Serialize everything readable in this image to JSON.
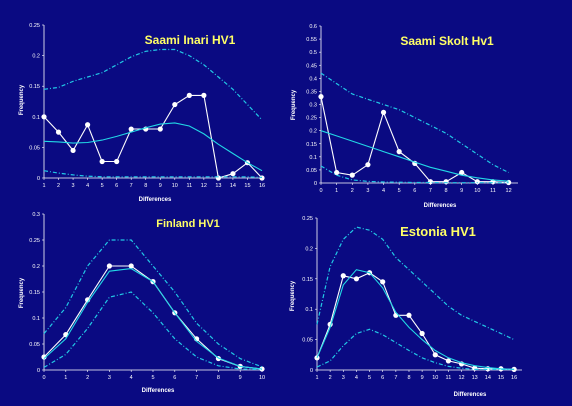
{
  "colors": {
    "background": "#0a0a82",
    "axis": "#ffffff",
    "observed": "#ffffff",
    "expected": "#22d8e6",
    "bounds": "#22c8e6",
    "title": "#ffff66"
  },
  "chart_data": [
    {
      "type": "line",
      "title": "Saami Inari HV1",
      "xlabel": "Differences",
      "ylabel": "Frequency",
      "x": [
        1,
        2,
        3,
        4,
        5,
        6,
        7,
        8,
        9,
        10,
        11,
        12,
        13,
        14,
        15,
        16
      ],
      "xlim": [
        1,
        16
      ],
      "ylim": [
        0,
        0.25
      ],
      "yticks": [
        "0",
        "0.05",
        "0.1",
        "0.15",
        "0.2",
        "0.25"
      ],
      "xticks": [
        "1",
        "2",
        "3",
        "4",
        "5",
        "6",
        "7",
        "8",
        "9",
        "10",
        "11",
        "12",
        "13",
        "14",
        "15",
        "16"
      ],
      "series": [
        {
          "role": "observed",
          "style": "solid-markers",
          "values": [
            0.1,
            0.075,
            0.045,
            0.087,
            0.027,
            0.027,
            0.08,
            0.08,
            0.08,
            0.12,
            0.135,
            0.135,
            0.0,
            0.007,
            0.025,
            0.0
          ]
        },
        {
          "role": "expected",
          "style": "solid",
          "values": [
            0.06,
            0.059,
            0.057,
            0.058,
            0.062,
            0.068,
            0.075,
            0.082,
            0.088,
            0.09,
            0.085,
            0.072,
            0.055,
            0.04,
            0.025,
            0.012
          ]
        },
        {
          "role": "upper",
          "style": "dash-dot",
          "values": [
            0.145,
            0.148,
            0.158,
            0.165,
            0.172,
            0.185,
            0.198,
            0.207,
            0.21,
            0.21,
            0.2,
            0.185,
            0.165,
            0.145,
            0.12,
            0.095
          ]
        },
        {
          "role": "lower",
          "style": "dash-dot",
          "values": [
            0.012,
            0.008,
            0.005,
            0.003,
            0.002,
            0.002,
            0.002,
            0.002,
            0.002,
            0.002,
            0.002,
            0.002,
            0.002,
            0.002,
            0.002,
            0.001
          ]
        }
      ]
    },
    {
      "type": "line",
      "title": "Saami Skolt Hv1",
      "xlabel": "Differences",
      "ylabel": "Frequency",
      "x": [
        0,
        1,
        2,
        3,
        4,
        5,
        6,
        7,
        8,
        9,
        10,
        11,
        12
      ],
      "xlim": [
        0,
        12.6
      ],
      "ylim": [
        0,
        0.6
      ],
      "yticks": [
        "0",
        "0.05",
        "0.1",
        "0.15",
        "0.2",
        "0.25",
        "0.3",
        "0.35",
        "0.4",
        "0.45",
        "0.5",
        "0.55",
        "0.6"
      ],
      "xticks": [
        "0",
        "1",
        "2",
        "3",
        "4",
        "5",
        "6",
        "7",
        "8",
        "9",
        "10",
        "11",
        "12"
      ],
      "series": [
        {
          "role": "observed",
          "style": "solid-markers",
          "values": [
            0.33,
            0.04,
            0.03,
            0.07,
            0.27,
            0.12,
            0.075,
            0.005,
            0.005,
            0.04,
            0.005,
            0.005,
            0.002
          ]
        },
        {
          "role": "expected",
          "style": "solid",
          "values": [
            0.2,
            0.18,
            0.16,
            0.14,
            0.12,
            0.1,
            0.08,
            0.06,
            0.045,
            0.03,
            0.02,
            0.012,
            0.007
          ]
        },
        {
          "role": "upper",
          "style": "dash-dot",
          "values": [
            0.42,
            0.38,
            0.34,
            0.32,
            0.3,
            0.28,
            0.25,
            0.22,
            0.19,
            0.15,
            0.11,
            0.07,
            0.04
          ]
        },
        {
          "role": "lower",
          "style": "dash-dot",
          "values": [
            0.065,
            0.03,
            0.012,
            0.006,
            0.004,
            0.003,
            0.002,
            0.002,
            0.001,
            0.001,
            0.001,
            0.001,
            0.001
          ]
        }
      ]
    },
    {
      "type": "line",
      "title": "Finland HV1",
      "xlabel": "Differences",
      "ylabel": "Frequency",
      "x": [
        0,
        1,
        2,
        3,
        4,
        5,
        6,
        7,
        8,
        9,
        10
      ],
      "xlim": [
        0,
        10
      ],
      "ylim": [
        0,
        0.3
      ],
      "yticks": [
        "0",
        "0.05",
        "0.1",
        "0.15",
        "0.2",
        "0.25",
        "0.3"
      ],
      "xticks": [
        "0",
        "1",
        "2",
        "3",
        "4",
        "5",
        "6",
        "7",
        "8",
        "9",
        "10"
      ],
      "series": [
        {
          "role": "observed",
          "style": "solid-markers",
          "values": [
            0.025,
            0.068,
            0.135,
            0.2,
            0.2,
            0.17,
            0.11,
            0.06,
            0.022,
            0.007,
            0.002
          ]
        },
        {
          "role": "expected",
          "style": "solid",
          "values": [
            0.022,
            0.06,
            0.13,
            0.19,
            0.195,
            0.17,
            0.11,
            0.055,
            0.023,
            0.007,
            0.002
          ]
        },
        {
          "role": "upper",
          "style": "dash-dot",
          "values": [
            0.07,
            0.12,
            0.2,
            0.25,
            0.25,
            0.2,
            0.15,
            0.09,
            0.05,
            0.022,
            0.006
          ]
        },
        {
          "role": "lower",
          "style": "dash-dot",
          "values": [
            0.005,
            0.03,
            0.08,
            0.14,
            0.15,
            0.11,
            0.06,
            0.025,
            0.008,
            0.002,
            0.001
          ]
        }
      ]
    },
    {
      "type": "line",
      "title": "Estonia HV1",
      "xlabel": "Differences",
      "ylabel": "Frequency",
      "x": [
        1,
        2,
        3,
        4,
        5,
        6,
        7,
        8,
        9,
        10,
        11,
        12,
        13,
        14,
        15,
        16
      ],
      "xlim": [
        1,
        16.6
      ],
      "ylim": [
        0,
        0.25
      ],
      "yticks": [
        "0",
        "0.05",
        "0.1",
        "0.15",
        "0.2",
        "0.25"
      ],
      "xticks": [
        "1",
        "2",
        "3",
        "4",
        "5",
        "6",
        "7",
        "8",
        "9",
        "10",
        "11",
        "12",
        "13",
        "14",
        "15",
        "16"
      ],
      "series": [
        {
          "role": "observed",
          "style": "solid-markers",
          "values": [
            0.02,
            0.075,
            0.155,
            0.15,
            0.16,
            0.145,
            0.09,
            0.09,
            0.06,
            0.025,
            0.015,
            0.01,
            0.003,
            0.002,
            0.002,
            0.001
          ]
        },
        {
          "role": "expected",
          "style": "solid",
          "values": [
            0.02,
            0.07,
            0.14,
            0.165,
            0.16,
            0.135,
            0.095,
            0.07,
            0.05,
            0.032,
            0.02,
            0.012,
            0.007,
            0.004,
            0.002,
            0.001
          ]
        },
        {
          "role": "upper",
          "style": "dash-dot",
          "values": [
            0.075,
            0.17,
            0.215,
            0.235,
            0.23,
            0.215,
            0.185,
            0.165,
            0.145,
            0.125,
            0.105,
            0.09,
            0.08,
            0.07,
            0.06,
            0.05
          ]
        },
        {
          "role": "lower",
          "style": "dash-dot",
          "values": [
            0.005,
            0.015,
            0.04,
            0.06,
            0.067,
            0.058,
            0.045,
            0.032,
            0.02,
            0.012,
            0.006,
            0.003,
            0.001,
            0.001,
            0.001,
            0.001
          ]
        }
      ]
    }
  ]
}
